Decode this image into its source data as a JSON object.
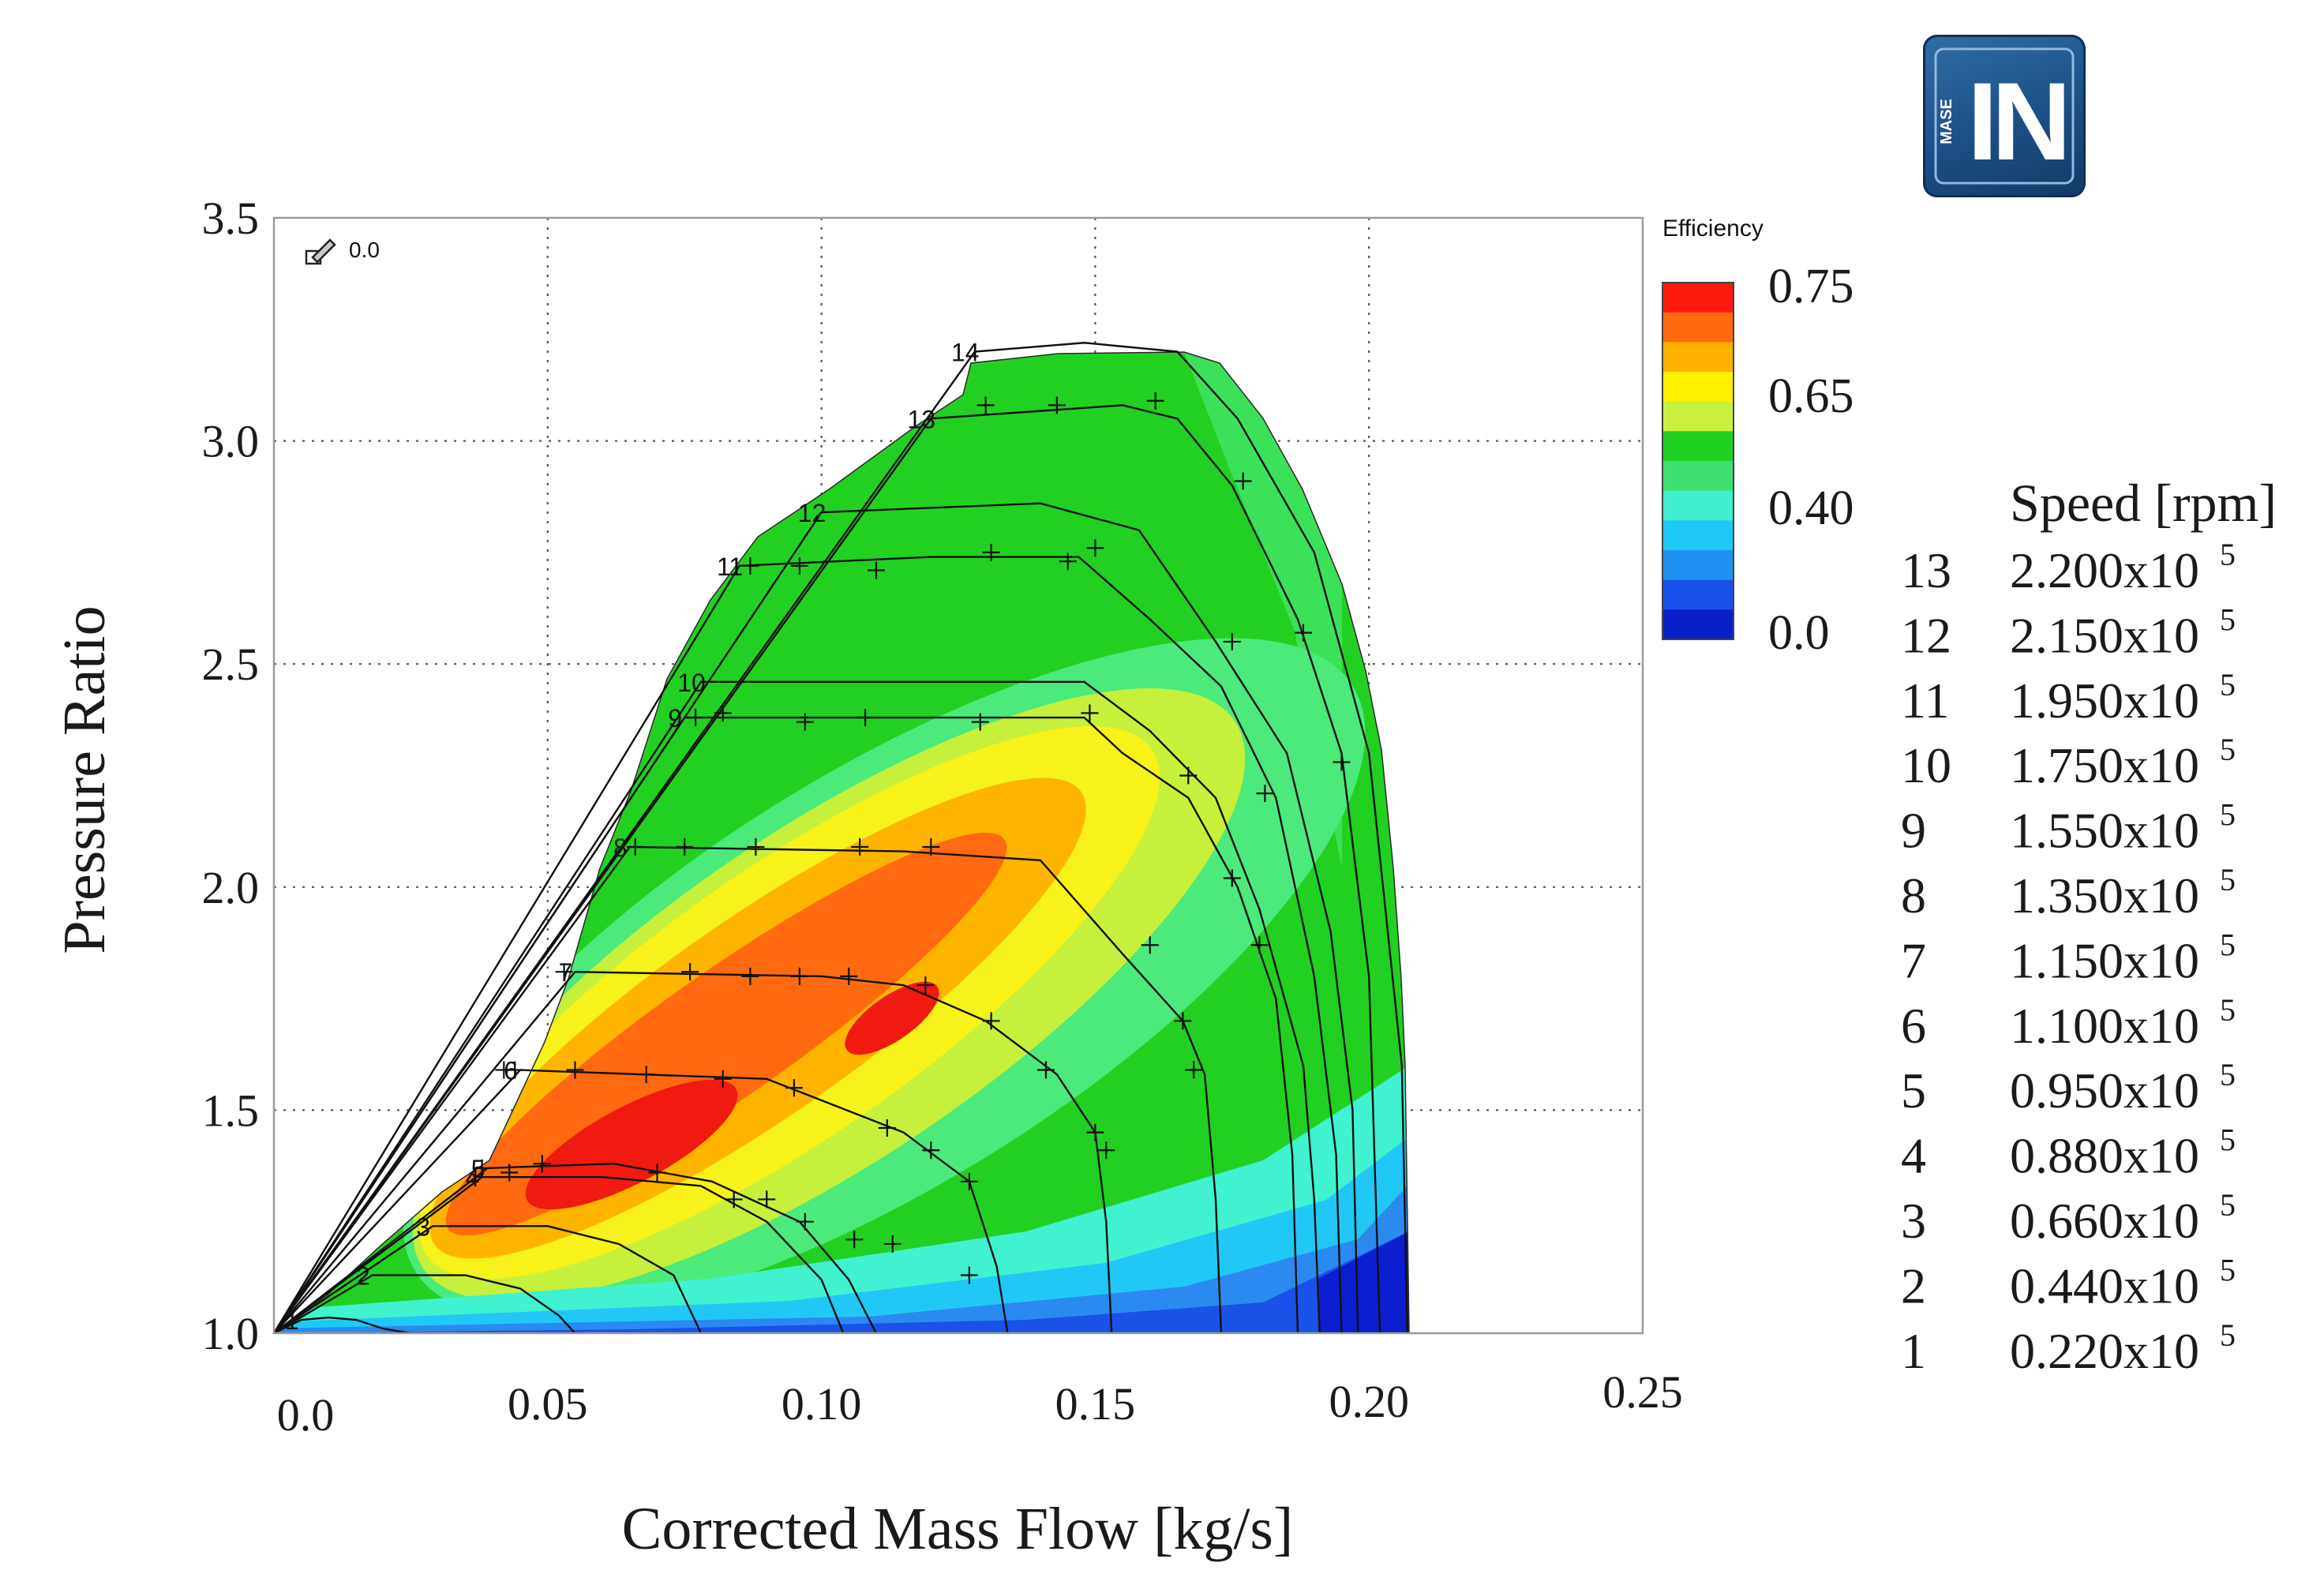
{
  "chart_data": {
    "type": "contour",
    "title": "",
    "xlabel": "Corrected Mass Flow [kg/s]",
    "ylabel": "Pressure Ratio",
    "xlim": [
      0.0,
      0.25
    ],
    "ylim": [
      1.0,
      3.5
    ],
    "x_ticks": [
      "0.0",
      "0.05",
      "0.10",
      "0.15",
      "0.20",
      "0.25"
    ],
    "y_ticks": [
      "1.0",
      "1.5",
      "2.0",
      "2.5",
      "3.0",
      "3.5"
    ],
    "grid": true,
    "probe_readout": "0.0",
    "colorbar": {
      "title": "Efficiency",
      "tick_labels": [
        "0.75",
        "0.65",
        "0.40",
        "0.0"
      ],
      "colors_top_to_bottom": [
        "#ff1a0d",
        "#ff6a10",
        "#ffb000",
        "#fff000",
        "#c8f03c",
        "#20d020",
        "#40e070",
        "#40f0d0",
        "#20c8f8",
        "#2090f0",
        "#1850e8",
        "#0820c8"
      ]
    },
    "contour_colors": {
      "blue_dark": "#0b1fd0",
      "blue": "#1a52e8",
      "blue_light": "#2a8af0",
      "cyan": "#22c8f5",
      "aqua": "#40f2d0",
      "green_light": "#4cea7a",
      "green": "#22d022",
      "lime": "#c6f03c",
      "yellow": "#f6f21a",
      "amber": "#ffb400",
      "orange": "#ff6a10",
      "red": "#f01a10"
    },
    "speed_lines": [
      {
        "label": "1",
        "points": [
          [
            0.0,
            1.0
          ],
          [
            0.005,
            1.03
          ],
          [
            0.01,
            1.035
          ],
          [
            0.015,
            1.03
          ],
          [
            0.02,
            1.01
          ],
          [
            0.025,
            1.0
          ]
        ]
      },
      {
        "label": "2",
        "points": [
          [
            0.0,
            1.0
          ],
          [
            0.018,
            1.13
          ],
          [
            0.035,
            1.13
          ],
          [
            0.045,
            1.1
          ],
          [
            0.052,
            1.04
          ],
          [
            0.055,
            1.0
          ]
        ]
      },
      {
        "label": "3",
        "points": [
          [
            0.0,
            1.0
          ],
          [
            0.029,
            1.24
          ],
          [
            0.05,
            1.24
          ],
          [
            0.063,
            1.2
          ],
          [
            0.073,
            1.13
          ],
          [
            0.078,
            1.0
          ]
        ]
      },
      {
        "label": "4",
        "points": [
          [
            0.0,
            1.0
          ],
          [
            0.038,
            1.35
          ],
          [
            0.06,
            1.35
          ],
          [
            0.078,
            1.33
          ],
          [
            0.09,
            1.25
          ],
          [
            0.1,
            1.12
          ],
          [
            0.104,
            1.0
          ]
        ]
      },
      {
        "label": "5",
        "points": [
          [
            0.0,
            1.0
          ],
          [
            0.039,
            1.37
          ],
          [
            0.062,
            1.38
          ],
          [
            0.08,
            1.34
          ],
          [
            0.096,
            1.25
          ],
          [
            0.105,
            1.12
          ],
          [
            0.11,
            1.0
          ]
        ]
      },
      {
        "label": "6",
        "points": [
          [
            0.0,
            1.0
          ],
          [
            0.045,
            1.59
          ],
          [
            0.09,
            1.57
          ],
          [
            0.115,
            1.45
          ],
          [
            0.127,
            1.34
          ],
          [
            0.132,
            1.15
          ],
          [
            0.134,
            1.0
          ]
        ]
      },
      {
        "label": "7",
        "points": [
          [
            0.0,
            1.0
          ],
          [
            0.055,
            1.81
          ],
          [
            0.1,
            1.8
          ],
          [
            0.115,
            1.78
          ],
          [
            0.13,
            1.7
          ],
          [
            0.143,
            1.58
          ],
          [
            0.15,
            1.45
          ],
          [
            0.152,
            1.25
          ],
          [
            0.153,
            1.0
          ]
        ]
      },
      {
        "label": "8",
        "points": [
          [
            0.0,
            1.0
          ],
          [
            0.065,
            2.09
          ],
          [
            0.115,
            2.08
          ],
          [
            0.14,
            2.06
          ],
          [
            0.155,
            1.85
          ],
          [
            0.166,
            1.7
          ],
          [
            0.17,
            1.58
          ],
          [
            0.172,
            1.3
          ],
          [
            0.173,
            1.0
          ]
        ]
      },
      {
        "label": "9",
        "points": [
          [
            0.0,
            1.0
          ],
          [
            0.075,
            2.38
          ],
          [
            0.12,
            2.38
          ],
          [
            0.148,
            2.38
          ],
          [
            0.155,
            2.3
          ],
          [
            0.167,
            2.2
          ],
          [
            0.176,
            2.0
          ],
          [
            0.183,
            1.75
          ],
          [
            0.186,
            1.4
          ],
          [
            0.187,
            1.0
          ]
        ]
      },
      {
        "label": "10",
        "points": [
          [
            0.0,
            1.0
          ],
          [
            0.078,
            2.46
          ],
          [
            0.12,
            2.46
          ],
          [
            0.148,
            2.46
          ],
          [
            0.16,
            2.35
          ],
          [
            0.172,
            2.2
          ],
          [
            0.18,
            1.95
          ],
          [
            0.188,
            1.6
          ],
          [
            0.19,
            1.3
          ],
          [
            0.191,
            1.0
          ]
        ]
      },
      {
        "label": "11",
        "points": [
          [
            0.0,
            1.0
          ],
          [
            0.085,
            2.72
          ],
          [
            0.12,
            2.74
          ],
          [
            0.147,
            2.74
          ],
          [
            0.16,
            2.6
          ],
          [
            0.173,
            2.45
          ],
          [
            0.183,
            2.2
          ],
          [
            0.19,
            1.8
          ],
          [
            0.194,
            1.4
          ],
          [
            0.195,
            1.0
          ]
        ]
      },
      {
        "label": "12",
        "points": [
          [
            0.0,
            1.0
          ],
          [
            0.1,
            2.84
          ],
          [
            0.14,
            2.86
          ],
          [
            0.158,
            2.8
          ],
          [
            0.172,
            2.55
          ],
          [
            0.185,
            2.3
          ],
          [
            0.193,
            1.9
          ],
          [
            0.197,
            1.5
          ],
          [
            0.198,
            1.0
          ]
        ]
      },
      {
        "label": "13",
        "points": [
          [
            0.0,
            1.0
          ],
          [
            0.12,
            3.05
          ],
          [
            0.155,
            3.08
          ],
          [
            0.165,
            3.05
          ],
          [
            0.175,
            2.9
          ],
          [
            0.187,
            2.6
          ],
          [
            0.195,
            2.3
          ],
          [
            0.2,
            1.8
          ],
          [
            0.202,
            1.0
          ]
        ]
      },
      {
        "label": "14",
        "points": [
          [
            0.0,
            1.0
          ],
          [
            0.128,
            3.2
          ],
          [
            0.148,
            3.22
          ],
          [
            0.165,
            3.2
          ],
          [
            0.176,
            3.05
          ],
          [
            0.19,
            2.75
          ],
          [
            0.2,
            2.3
          ],
          [
            0.206,
            1.6
          ],
          [
            0.207,
            1.0
          ]
        ]
      }
    ],
    "measured_points": [
      [
        0.042,
        1.59
      ],
      [
        0.044,
        1.59
      ],
      [
        0.055,
        1.59
      ],
      [
        0.068,
        1.58
      ],
      [
        0.082,
        1.57
      ],
      [
        0.095,
        1.55
      ],
      [
        0.112,
        1.46
      ],
      [
        0.12,
        1.41
      ],
      [
        0.127,
        1.34
      ],
      [
        0.053,
        1.81
      ],
      [
        0.076,
        1.81
      ],
      [
        0.087,
        1.8
      ],
      [
        0.096,
        1.8
      ],
      [
        0.105,
        1.8
      ],
      [
        0.119,
        1.78
      ],
      [
        0.131,
        1.7
      ],
      [
        0.141,
        1.59
      ],
      [
        0.15,
        1.45
      ],
      [
        0.152,
        1.41
      ],
      [
        0.066,
        2.09
      ],
      [
        0.075,
        2.09
      ],
      [
        0.088,
        2.09
      ],
      [
        0.107,
        2.09
      ],
      [
        0.12,
        2.09
      ],
      [
        0.16,
        1.87
      ],
      [
        0.166,
        1.7
      ],
      [
        0.168,
        1.59
      ],
      [
        0.077,
        2.38
      ],
      [
        0.082,
        2.39
      ],
      [
        0.097,
        2.37
      ],
      [
        0.108,
        2.38
      ],
      [
        0.129,
        2.37
      ],
      [
        0.149,
        2.39
      ],
      [
        0.167,
        2.25
      ],
      [
        0.175,
        2.02
      ],
      [
        0.18,
        1.87
      ],
      [
        0.087,
        2.72
      ],
      [
        0.096,
        2.72
      ],
      [
        0.11,
        2.71
      ],
      [
        0.131,
        2.75
      ],
      [
        0.145,
        2.73
      ],
      [
        0.15,
        2.76
      ],
      [
        0.175,
        2.55
      ],
      [
        0.181,
        2.21
      ],
      [
        0.13,
        3.08
      ],
      [
        0.143,
        3.08
      ],
      [
        0.161,
        3.09
      ],
      [
        0.177,
        2.91
      ],
      [
        0.188,
        2.57
      ],
      [
        0.195,
        2.28
      ],
      [
        0.038,
        1.37
      ],
      [
        0.049,
        1.38
      ],
      [
        0.07,
        1.36
      ],
      [
        0.09,
        1.3
      ],
      [
        0.097,
        1.25
      ],
      [
        0.106,
        1.21
      ],
      [
        0.043,
        1.36
      ],
      [
        0.084,
        1.3
      ],
      [
        0.113,
        1.2
      ],
      [
        0.127,
        1.13
      ]
    ]
  },
  "legend": {
    "title": "Speed [rpm]",
    "items": [
      {
        "id": "13",
        "value": "2.200x10",
        "exp": "5"
      },
      {
        "id": "12",
        "value": "2.150x10",
        "exp": "5"
      },
      {
        "id": "11",
        "value": "1.950x10",
        "exp": "5"
      },
      {
        "id": "10",
        "value": "1.750x10",
        "exp": "5"
      },
      {
        "id": "9",
        "value": "1.550x10",
        "exp": "5"
      },
      {
        "id": "8",
        "value": "1.350x10",
        "exp": "5"
      },
      {
        "id": "7",
        "value": "1.150x10",
        "exp": "5"
      },
      {
        "id": "6",
        "value": "1.100x10",
        "exp": "5"
      },
      {
        "id": "5",
        "value": "0.950x10",
        "exp": "5"
      },
      {
        "id": "4",
        "value": "0.880x10",
        "exp": "5"
      },
      {
        "id": "3",
        "value": "0.660x10",
        "exp": "5"
      },
      {
        "id": "2",
        "value": "0.440x10",
        "exp": "5"
      },
      {
        "id": "1",
        "value": "0.220x10",
        "exp": "5"
      }
    ]
  },
  "logo": {
    "text": "IN",
    "side_text": "MASE"
  }
}
